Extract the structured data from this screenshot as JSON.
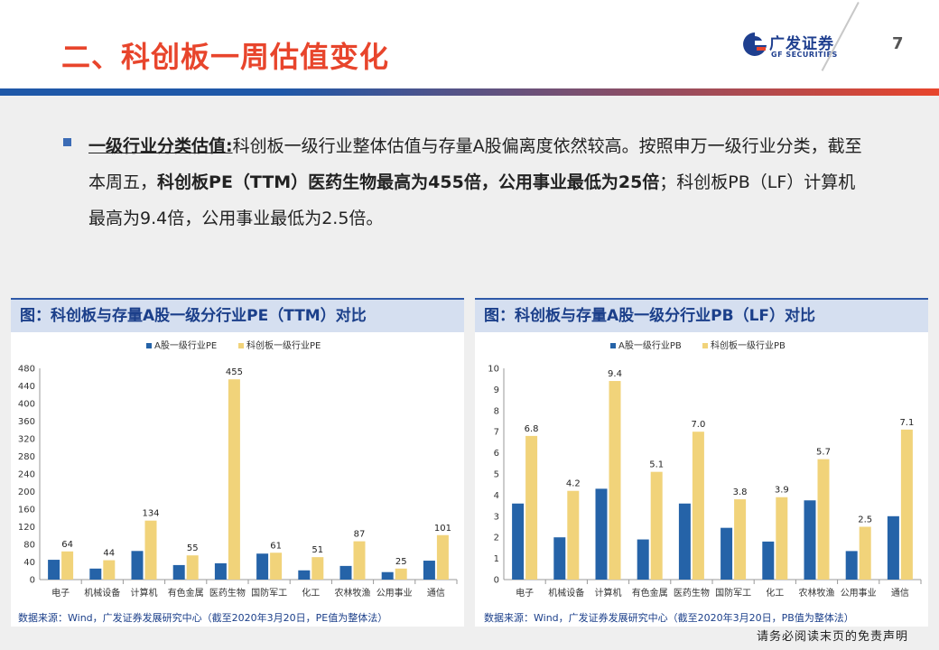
{
  "header": {
    "title": "二、科创板一周估值变化",
    "logo_cn": "广发证券",
    "logo_en": "GF SECURITIES",
    "page_number": "7"
  },
  "body": {
    "lead": "一级行业分类估值:",
    "text1": "科创板一级行业整体估值与存量A股偏离度依然较高。按照申万一级行业分类，截至本周五，",
    "bold": "科创板PE（TTM）医药生物最高为455倍，公用事业最低为25倍",
    "text2": "；科创板PB（LF）计算机最高为9.4倍，公用事业最低为2.5倍。"
  },
  "colors": {
    "series_a": "#2563a8",
    "series_b": "#f1d37a",
    "title_red": "#e8452c",
    "brand_blue": "#1f3f8f"
  },
  "chart_data": [
    {
      "type": "bar",
      "title": "图：科创板与存量A股一级分行业PE（TTM）对比",
      "categories": [
        "电子",
        "机械设备",
        "计算机",
        "有色金属",
        "医药生物",
        "国防军工",
        "化工",
        "农林牧渔",
        "公用事业",
        "通信"
      ],
      "series": [
        {
          "name": "A股一级行业PE",
          "values": [
            45,
            25,
            65,
            33,
            37,
            59,
            21,
            31,
            17,
            43
          ],
          "labels": []
        },
        {
          "name": "科创板一级行业PE",
          "values": [
            64,
            44,
            134,
            55,
            455,
            61,
            51,
            87,
            25,
            101
          ],
          "labels": [
            "64",
            "44",
            "134",
            "55",
            "455",
            "61",
            "51",
            "87",
            "25",
            "101"
          ]
        }
      ],
      "ylim": [
        0,
        480
      ],
      "yticks": [
        "0",
        "40",
        "80",
        "120",
        "160",
        "200",
        "240",
        "280",
        "320",
        "360",
        "400",
        "440",
        "480"
      ],
      "legend": "top",
      "source": "数据来源：Wind，广发证券发展研究中心（截至2020年3月20日，PE值为整体法）"
    },
    {
      "type": "bar",
      "title": "图：科创板与存量A股一级分行业PB（LF）对比",
      "categories": [
        "电子",
        "机械设备",
        "计算机",
        "有色金属",
        "医药生物",
        "国防军工",
        "化工",
        "农林牧渔",
        "公用事业",
        "通信"
      ],
      "series": [
        {
          "name": "A股一级行业PB",
          "values": [
            3.6,
            2.0,
            4.3,
            1.9,
            3.6,
            2.45,
            1.8,
            3.75,
            1.35,
            3.0
          ],
          "labels": []
        },
        {
          "name": "科创板一级行业PB",
          "values": [
            6.8,
            4.2,
            9.4,
            5.1,
            7.0,
            3.8,
            3.9,
            5.7,
            2.5,
            7.1
          ],
          "labels": [
            "6.8",
            "4.2",
            "9.4",
            "5.1",
            "7.0",
            "3.8",
            "3.9",
            "5.7",
            "2.5",
            "7.1"
          ]
        }
      ],
      "ylim": [
        0,
        10
      ],
      "yticks": [
        "0",
        "1",
        "2",
        "3",
        "4",
        "5",
        "6",
        "7",
        "8",
        "9",
        "10"
      ],
      "legend": "top",
      "source": "数据来源：Wind，广发证券发展研究中心（截至2020年3月20日，PB值为整体法）"
    }
  ],
  "footer": {
    "disclaimer": "请务必阅读末页的免责声明"
  }
}
